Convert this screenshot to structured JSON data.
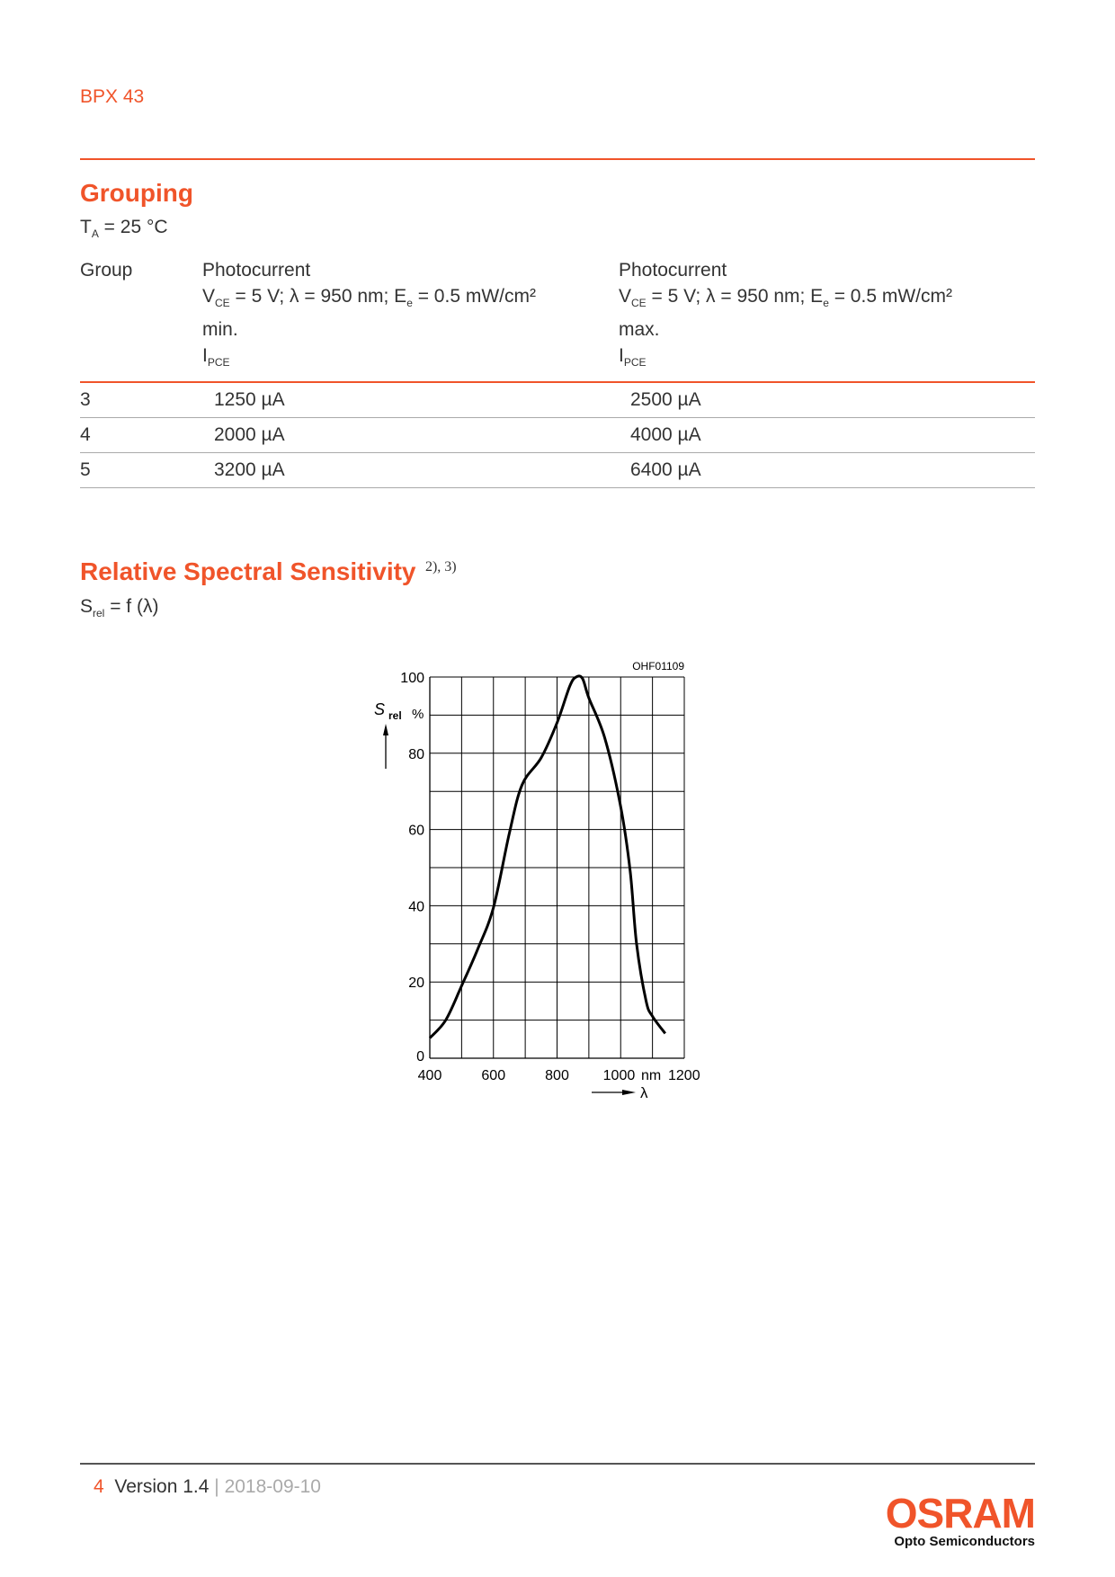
{
  "header": {
    "product": "BPX 43"
  },
  "grouping": {
    "title": "Grouping",
    "cond_T": "T",
    "cond_T_sub": "A",
    "cond_T_rest": " = 25 °C",
    "columns": [
      {
        "label": "Group"
      },
      {
        "label": "Photocurrent",
        "cond": [
          "V",
          "CE",
          " = 5 V; λ = 950 nm; E",
          "e",
          " = 0.5 mW/cm²"
        ],
        "qual": "min.",
        "sym": "I",
        "sym_sub": "PCE"
      },
      {
        "label": "Photocurrent",
        "cond": [
          "V",
          "CE",
          " = 5 V; λ = 950 nm; E",
          "e",
          " = 0.5 mW/cm²"
        ],
        "qual": "max.",
        "sym": "I",
        "sym_sub": "PCE"
      }
    ],
    "rows": [
      [
        "3",
        "1250 µA",
        "2500 µA"
      ],
      [
        "4",
        "2000 µA",
        "4000 µA"
      ],
      [
        "5",
        "3200 µA",
        "6400 µA"
      ]
    ]
  },
  "spectral": {
    "title": "Relative Spectral Sensitivity",
    "refs": "2), 3)",
    "func": "S",
    "func_sub": "rel",
    "func_rest": " = f (λ)"
  },
  "chart_data": {
    "type": "line",
    "code": "OHF01109",
    "ylabel": "S",
    "ylabel_sub": "rel",
    "yunit": "%",
    "xlabel": "λ",
    "xunit": "nm",
    "xlim": [
      400,
      1200
    ],
    "ylim": [
      0,
      100
    ],
    "xticks": [
      "400",
      "600",
      "800",
      "1000",
      "1200"
    ],
    "yticks": [
      "0",
      "20",
      "40",
      "60",
      "80",
      "100"
    ],
    "grid": true,
    "x": [
      400,
      450,
      500,
      550,
      600,
      650,
      690,
      750,
      800,
      840,
      860,
      880,
      900,
      950,
      1000,
      1030,
      1050,
      1080,
      1100,
      1140
    ],
    "y": [
      5.3,
      10,
      19,
      28.5,
      39.5,
      59,
      71.7,
      78.8,
      88,
      97.6,
      100,
      99.6,
      94.5,
      84,
      66,
      49,
      30,
      15,
      11,
      6.5
    ]
  },
  "footer": {
    "page": "4",
    "version": "Version 1.4",
    "sep": " | ",
    "date": "2018-09-10",
    "logo": "OSRAM",
    "logo_sub": "Opto Semiconductors"
  }
}
